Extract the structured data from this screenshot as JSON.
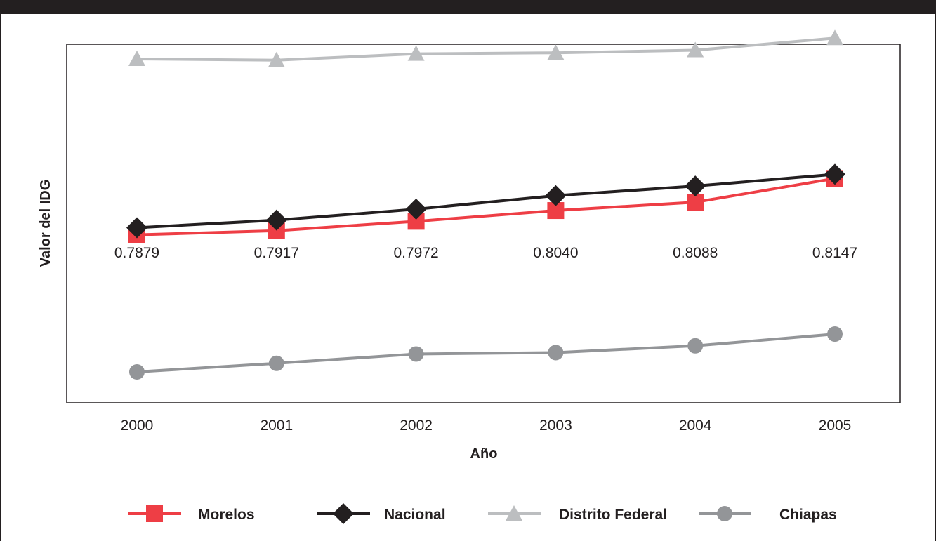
{
  "chart_data": {
    "type": "line",
    "title": "",
    "xlabel": "Año",
    "ylabel": "Valor del IDG",
    "x": [
      "2000",
      "2001",
      "2002",
      "2003",
      "2004",
      "2005"
    ],
    "ylim": [
      0.7,
      0.88
    ],
    "grid": false,
    "legend_position": "bottom",
    "series": [
      {
        "name": "Morelos",
        "color": "#ee3e45",
        "marker": "square",
        "values": [
          0.7843,
          0.7864,
          0.7911,
          0.7965,
          0.8007,
          0.8126
        ]
      },
      {
        "name": "Nacional",
        "color": "#231f20",
        "marker": "diamond",
        "values": [
          0.7879,
          0.7917,
          0.7972,
          0.804,
          0.8088,
          0.8147
        ]
      },
      {
        "name": "Distrito Federal",
        "color": "#bcbec0",
        "marker": "triangle",
        "values": [
          0.8726,
          0.872,
          0.8752,
          0.8757,
          0.877,
          0.8831
        ]
      },
      {
        "name": "Chiapas",
        "color": "#939598",
        "marker": "circle",
        "values": [
          0.7155,
          0.7198,
          0.7245,
          0.7252,
          0.7286,
          0.7345
        ]
      }
    ],
    "data_labels": [
      "0.7879",
      "0.7917",
      "0.7972",
      "0.8040",
      "0.8088",
      "0.8147"
    ]
  }
}
